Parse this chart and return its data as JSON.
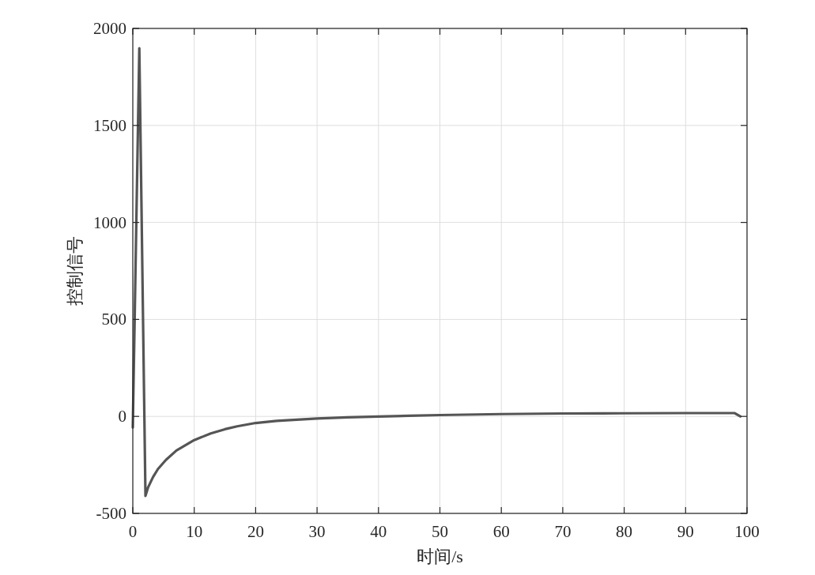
{
  "chart_data": {
    "type": "line",
    "xlabel": "时间/s",
    "ylabel": "控制信号",
    "x": [
      0,
      1.06,
      2.06,
      2.5,
      3.3,
      4.1,
      5.4,
      7.1,
      10,
      12.7,
      15,
      17,
      20,
      23.4,
      30,
      35,
      40,
      45,
      50,
      60,
      70,
      80,
      90,
      98,
      98.9
    ],
    "series": [
      {
        "color": "#555555",
        "values": [
          -57,
          1898,
          -410,
          -365,
          -312,
          -271,
          -224,
          -176,
          -122,
          -88,
          -66,
          -51,
          -34,
          -23,
          -11,
          -5,
          -1,
          3,
          7,
          12,
          15,
          16,
          17,
          17,
          0
        ]
      }
    ],
    "xlim": [
      0,
      100
    ],
    "ylim": [
      -500,
      2000
    ],
    "xticks": [
      0,
      10,
      20,
      30,
      40,
      50,
      60,
      70,
      80,
      90,
      100
    ],
    "yticks": [
      -500,
      0,
      500,
      1000,
      1500,
      2000
    ],
    "grid": true,
    "line_style": "solid"
  }
}
